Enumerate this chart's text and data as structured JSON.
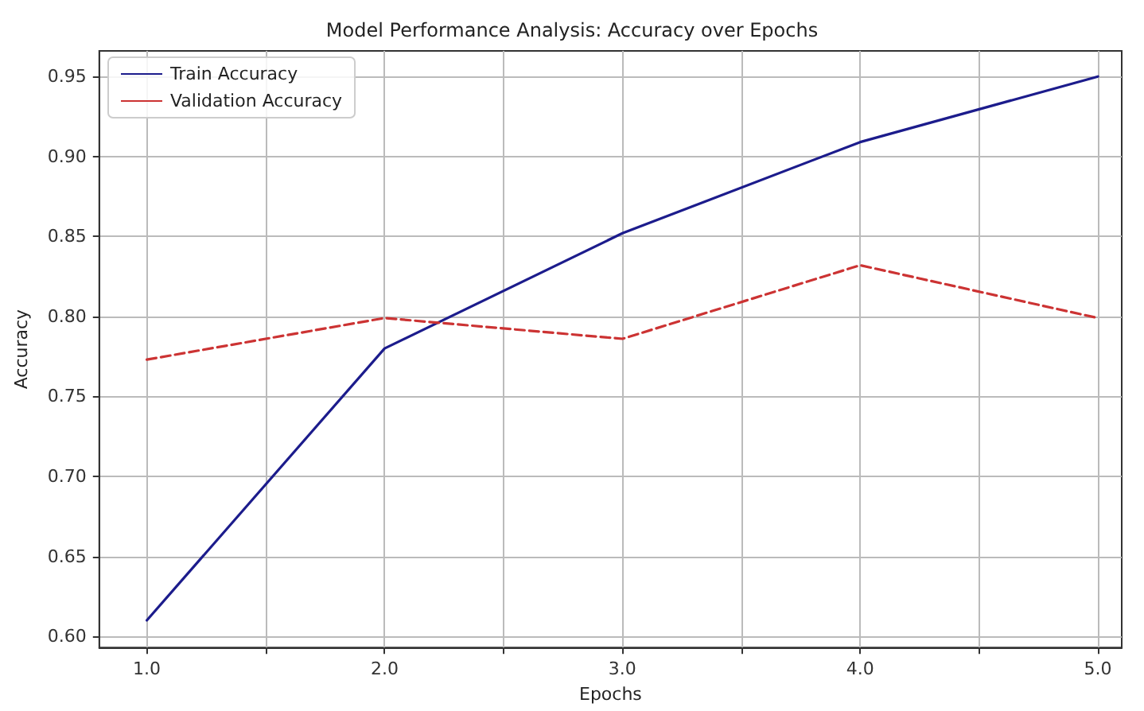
{
  "chart_data": {
    "type": "line",
    "title": "Model Performance Analysis: Accuracy over Epochs",
    "xlabel": "Epochs",
    "ylabel": "Accuracy",
    "x": [
      1,
      2,
      3,
      4,
      5
    ],
    "series": [
      {
        "name": "Train Accuracy",
        "color": "#1c1c8c",
        "line_style": "solid",
        "values": [
          0.61,
          0.78,
          0.852,
          0.909,
          0.95
        ]
      },
      {
        "name": "Validation Accuracy",
        "color": "#cc3333",
        "line_style": "dashed",
        "values": [
          0.773,
          0.799,
          0.786,
          0.832,
          0.799
        ]
      }
    ],
    "xlim": [
      0.8,
      5.1
    ],
    "xticks": [
      {
        "value": 1,
        "label": "1.0"
      },
      {
        "value": 1.5,
        "label": null
      },
      {
        "value": 2,
        "label": "2.0"
      },
      {
        "value": 2.5,
        "label": null
      },
      {
        "value": 3,
        "label": "3.0"
      },
      {
        "value": 3.5,
        "label": null
      },
      {
        "value": 4,
        "label": "4.0"
      },
      {
        "value": 4.5,
        "label": null
      },
      {
        "value": 5,
        "label": "5.0"
      }
    ],
    "ylim": [
      0.593,
      0.966
    ],
    "yticks": [
      {
        "value": 0.6,
        "label": "0.60"
      },
      {
        "value": 0.65,
        "label": "0.65"
      },
      {
        "value": 0.7,
        "label": "0.70"
      },
      {
        "value": 0.75,
        "label": "0.75"
      },
      {
        "value": 0.8,
        "label": "0.80"
      },
      {
        "value": 0.85,
        "label": "0.85"
      },
      {
        "value": 0.9,
        "label": "0.90"
      },
      {
        "value": 0.95,
        "label": "0.95"
      }
    ],
    "grid": true,
    "legend": "top left",
    "marker": "none"
  }
}
